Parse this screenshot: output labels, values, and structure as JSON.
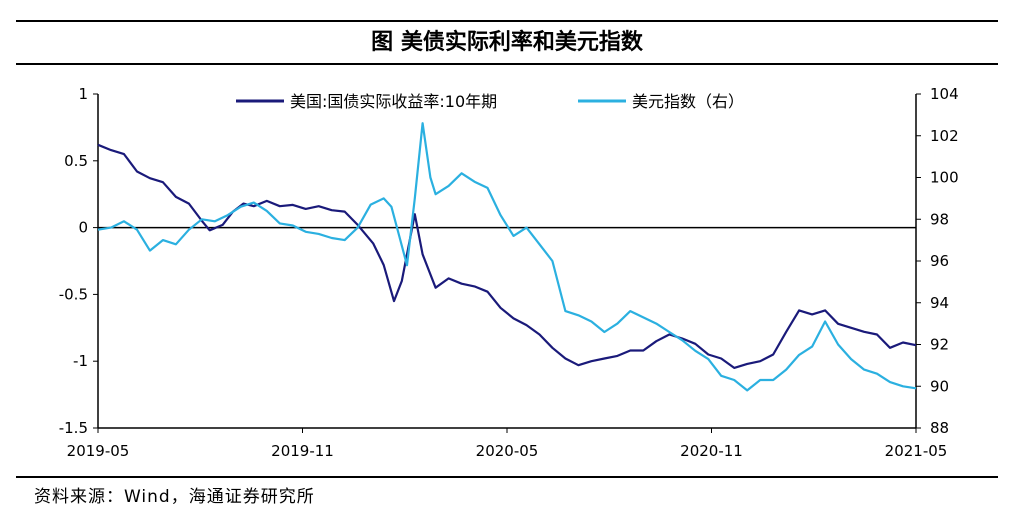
{
  "title": "图  美债实际利率和美元指数",
  "source": "资料来源：Wind，海通证券研究所",
  "chart_data": {
    "type": "line",
    "title": "图  美债实际利率和美元指数",
    "x_ticks": [
      "2019-05",
      "2019-11",
      "2020-05",
      "2020-11",
      "2021-05"
    ],
    "x_range": [
      "2019-05",
      "2021-05"
    ],
    "y_left": {
      "range": [
        -1.5,
        1
      ],
      "ticks": [
        "1",
        "0.5",
        "0",
        "-0.5",
        "-1",
        "-1.5"
      ]
    },
    "y_right": {
      "range": [
        88,
        104
      ],
      "ticks": [
        "104",
        "102",
        "100",
        "98",
        "96",
        "94",
        "92",
        "90",
        "88"
      ]
    },
    "legend_position": "top",
    "grid": false,
    "series": [
      {
        "name": "美国:国债实际收益率:10年期",
        "axis": "left",
        "color": "#1a1a7a",
        "points": [
          [
            0,
            0.62
          ],
          [
            0.5,
            0.58
          ],
          [
            1.0,
            0.55
          ],
          [
            1.5,
            0.42
          ],
          [
            2.0,
            0.37
          ],
          [
            2.5,
            0.34
          ],
          [
            3.0,
            0.23
          ],
          [
            3.5,
            0.18
          ],
          [
            4.0,
            0.05
          ],
          [
            4.3,
            -0.02
          ],
          [
            4.8,
            0.02
          ],
          [
            5.2,
            0.12
          ],
          [
            5.6,
            0.18
          ],
          [
            6.0,
            0.16
          ],
          [
            6.5,
            0.2
          ],
          [
            7.0,
            0.16
          ],
          [
            7.5,
            0.17
          ],
          [
            8.0,
            0.14
          ],
          [
            8.5,
            0.16
          ],
          [
            9.0,
            0.13
          ],
          [
            9.5,
            0.12
          ],
          [
            10.0,
            0.02
          ],
          [
            10.6,
            -0.12
          ],
          [
            11.0,
            -0.28
          ],
          [
            11.4,
            -0.55
          ],
          [
            11.7,
            -0.4
          ],
          [
            11.9,
            -0.2
          ],
          [
            12.2,
            0.1
          ],
          [
            12.5,
            -0.2
          ],
          [
            12.8,
            -0.35
          ],
          [
            13.0,
            -0.45
          ],
          [
            13.5,
            -0.38
          ],
          [
            14.0,
            -0.42
          ],
          [
            14.5,
            -0.44
          ],
          [
            15.0,
            -0.48
          ],
          [
            15.5,
            -0.6
          ],
          [
            16.0,
            -0.68
          ],
          [
            16.5,
            -0.73
          ],
          [
            17.0,
            -0.8
          ],
          [
            17.5,
            -0.9
          ],
          [
            18.0,
            -0.98
          ],
          [
            18.5,
            -1.03
          ],
          [
            19.0,
            -1.0
          ],
          [
            19.5,
            -0.98
          ],
          [
            20.0,
            -0.96
          ],
          [
            20.5,
            -0.92
          ],
          [
            21.0,
            -0.92
          ],
          [
            21.5,
            -0.85
          ],
          [
            22.0,
            -0.8
          ],
          [
            22.5,
            -0.83
          ],
          [
            23.0,
            -0.87
          ],
          [
            23.5,
            -0.95
          ],
          [
            24.0,
            -0.98
          ],
          [
            24.5,
            -1.05
          ],
          [
            25.0,
            -1.02
          ],
          [
            25.5,
            -1.0
          ],
          [
            26.0,
            -0.95
          ],
          [
            26.5,
            -0.78
          ],
          [
            27.0,
            -0.62
          ],
          [
            27.5,
            -0.65
          ],
          [
            28.0,
            -0.62
          ],
          [
            28.5,
            -0.72
          ],
          [
            29.0,
            -0.75
          ],
          [
            29.5,
            -0.78
          ],
          [
            30.0,
            -0.8
          ],
          [
            30.5,
            -0.9
          ],
          [
            31.0,
            -0.86
          ],
          [
            31.5,
            -0.88
          ]
        ]
      },
      {
        "name": "美元指数（右）",
        "axis": "right",
        "color": "#2bb0e0",
        "points": [
          [
            0,
            97.5
          ],
          [
            0.5,
            97.6
          ],
          [
            1.0,
            97.9
          ],
          [
            1.5,
            97.5
          ],
          [
            2.0,
            96.5
          ],
          [
            2.5,
            97.0
          ],
          [
            3.0,
            96.8
          ],
          [
            3.5,
            97.5
          ],
          [
            4.0,
            98.0
          ],
          [
            4.5,
            97.9
          ],
          [
            5.0,
            98.2
          ],
          [
            5.5,
            98.6
          ],
          [
            6.0,
            98.8
          ],
          [
            6.5,
            98.4
          ],
          [
            7.0,
            97.8
          ],
          [
            7.5,
            97.7
          ],
          [
            8.0,
            97.4
          ],
          [
            8.5,
            97.3
          ],
          [
            9.0,
            97.1
          ],
          [
            9.5,
            97.0
          ],
          [
            10.0,
            97.6
          ],
          [
            10.5,
            98.7
          ],
          [
            11.0,
            99.0
          ],
          [
            11.3,
            98.6
          ],
          [
            11.6,
            97.2
          ],
          [
            11.9,
            95.8
          ],
          [
            12.2,
            99.0
          ],
          [
            12.5,
            102.6
          ],
          [
            12.8,
            100.0
          ],
          [
            13.0,
            99.2
          ],
          [
            13.5,
            99.6
          ],
          [
            14.0,
            100.2
          ],
          [
            14.5,
            99.8
          ],
          [
            15.0,
            99.5
          ],
          [
            15.5,
            98.2
          ],
          [
            16.0,
            97.2
          ],
          [
            16.5,
            97.6
          ],
          [
            17.0,
            96.8
          ],
          [
            17.5,
            96.0
          ],
          [
            18.0,
            93.6
          ],
          [
            18.5,
            93.4
          ],
          [
            19.0,
            93.1
          ],
          [
            19.5,
            92.6
          ],
          [
            20.0,
            93.0
          ],
          [
            20.5,
            93.6
          ],
          [
            21.0,
            93.3
          ],
          [
            21.5,
            93.0
          ],
          [
            22.0,
            92.6
          ],
          [
            22.5,
            92.2
          ],
          [
            23.0,
            91.7
          ],
          [
            23.5,
            91.3
          ],
          [
            24.0,
            90.5
          ],
          [
            24.5,
            90.3
          ],
          [
            25.0,
            89.8
          ],
          [
            25.5,
            90.3
          ],
          [
            26.0,
            90.3
          ],
          [
            26.5,
            90.8
          ],
          [
            27.0,
            91.5
          ],
          [
            27.5,
            91.9
          ],
          [
            28.0,
            93.1
          ],
          [
            28.5,
            92.0
          ],
          [
            29.0,
            91.3
          ],
          [
            29.5,
            90.8
          ],
          [
            30.0,
            90.6
          ],
          [
            30.5,
            90.2
          ],
          [
            31.0,
            90.0
          ],
          [
            31.5,
            89.9
          ]
        ]
      }
    ]
  }
}
